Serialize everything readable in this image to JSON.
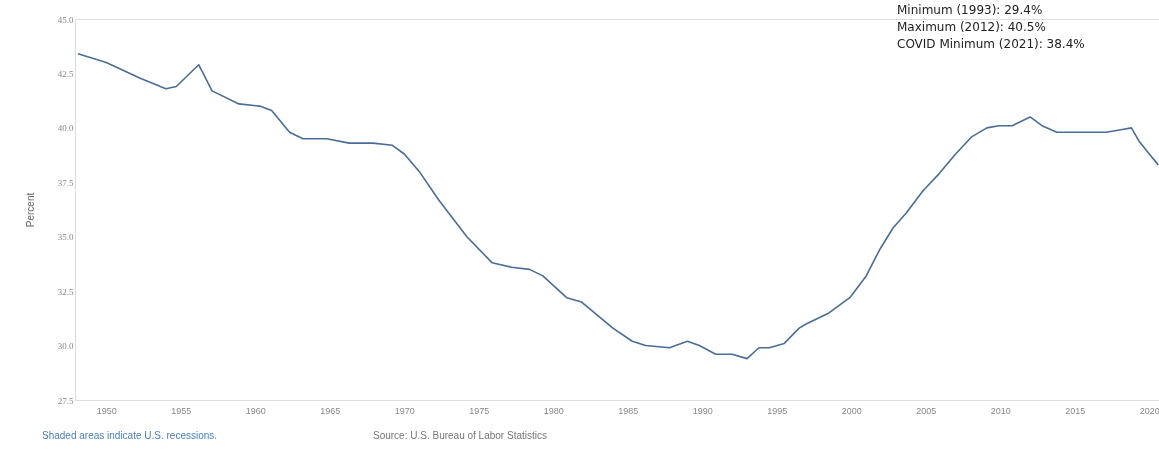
{
  "chart_data": {
    "type": "line",
    "ylabel": "Percent",
    "x": [
      1948.1,
      1950,
      1952.2,
      1954.0,
      1954.7,
      1956.2,
      1957.1,
      1958.9,
      1960.3,
      1961.1,
      1962.3,
      1963.2,
      1964.8,
      1966.3,
      1967.9,
      1969.2,
      1970,
      1971,
      1972.3,
      1974.2,
      1975.9,
      1977.2,
      1978.4,
      1979.3,
      1980.9,
      1981.9,
      1984.0,
      1985.3,
      1986.2,
      1987.8,
      1989.0,
      1989.8,
      1990.9,
      1992.0,
      1993.0,
      1993.8,
      1994.5,
      1995.5,
      1996.5,
      1997.0,
      1998.5,
      1999.9,
      2001.0,
      2001.9,
      2002.8,
      2003.7,
      2004.8,
      2005.9,
      2007.0,
      2008.1,
      2009.1,
      2009.9,
      2010.8,
      2012.0,
      2012.8,
      2013.8,
      2014.6,
      2015.8,
      2017.1,
      2018.0,
      2018.8,
      2019.3,
      2020.0,
      2020.6
    ],
    "series": [
      {
        "color": "#4a6d96",
        "values": [
          43.4,
          43.0,
          42.3,
          41.8,
          41.9,
          42.9,
          41.7,
          41.1,
          41.0,
          40.8,
          39.8,
          39.5,
          39.5,
          39.3,
          39.3,
          39.2,
          38.8,
          38.0,
          36.7,
          35.0,
          33.8,
          33.6,
          33.5,
          33.2,
          32.2,
          32.0,
          30.8,
          30.2,
          30.0,
          29.9,
          30.2,
          30.0,
          29.6,
          29.6,
          29.4,
          29.9,
          29.9,
          30.1,
          30.8,
          31.0,
          31.5,
          32.2,
          33.2,
          34.4,
          35.4,
          36.1,
          37.1,
          37.9,
          38.8,
          39.6,
          40.0,
          40.1,
          40.1,
          40.5,
          40.1,
          39.8,
          39.8,
          39.8,
          39.8,
          39.9,
          40.0,
          39.4,
          38.8,
          38.3
        ]
      }
    ],
    "xlim": [
      1947.9,
      2020.65
    ],
    "ylim": [
      27.5,
      45.0
    ],
    "xticks": [
      1950,
      1955,
      1960,
      1965,
      1970,
      1975,
      1980,
      1985,
      1990,
      1995,
      2000,
      2005,
      2010,
      2015,
      2020
    ],
    "yticks": [
      27.5,
      {
        "value": 30,
        "label": "30.0"
      },
      32.5,
      {
        "value": 35,
        "label": "35.0"
      },
      37.5,
      {
        "value": 40,
        "label": "40.0"
      },
      42.5,
      {
        "value": 45,
        "label": "45.0"
      }
    ],
    "annotations": [
      "Minimum (1993): 29.4%",
      "Maximum (2012): 40.5%",
      "COVID Minimum (2021): 38.4%",
      "Shaded areas indicate U.S. recessions.",
      "Source: U.S. Bureau of Labor Statistics"
    ],
    "grid": false,
    "marker": "none",
    "line_style": "solid"
  }
}
